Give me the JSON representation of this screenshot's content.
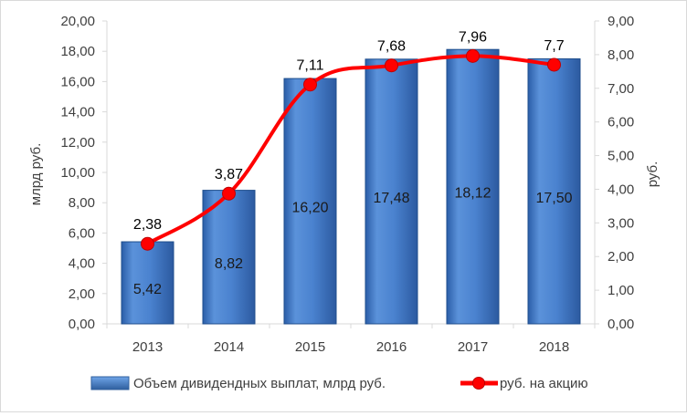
{
  "chart_data": {
    "type": "bar",
    "categories": [
      "2013",
      "2014",
      "2015",
      "2016",
      "2017",
      "2018"
    ],
    "series": [
      {
        "name": "Объем дивидендных выплат, млрд руб.",
        "type": "bar",
        "axis": "left",
        "values": [
          5.42,
          8.82,
          16.2,
          17.48,
          18.12,
          17.5
        ],
        "labels": [
          "5,42",
          "8,82",
          "16,20",
          "17,48",
          "18,12",
          "17,50"
        ]
      },
      {
        "name": "руб. на акцию",
        "type": "line",
        "axis": "right",
        "values": [
          2.38,
          3.87,
          7.11,
          7.68,
          7.96,
          7.7
        ],
        "labels": [
          "2,38",
          "3,87",
          "7,11",
          "7,68",
          "7,96",
          "7,7"
        ]
      }
    ],
    "ylabel_left": "млрд руб.",
    "ylabel_right": "руб.",
    "ylim_left": [
      0,
      20
    ],
    "ylim_right": [
      0,
      9
    ],
    "yticks_left": [
      "0,00",
      "2,00",
      "4,00",
      "6,00",
      "8,00",
      "10,00",
      "12,00",
      "14,00",
      "16,00",
      "18,00",
      "20,00"
    ],
    "yticks_right": [
      "0,00",
      "1,00",
      "2,00",
      "3,00",
      "4,00",
      "5,00",
      "6,00",
      "7,00",
      "8,00",
      "9,00"
    ],
    "legend_position": "bottom",
    "grid": false,
    "colors": {
      "bar": "#4a7ec5",
      "bar_dark": "#2f5f9e",
      "line": "#ff0000",
      "axis": "#d9d9d9",
      "text": "#404040"
    }
  }
}
